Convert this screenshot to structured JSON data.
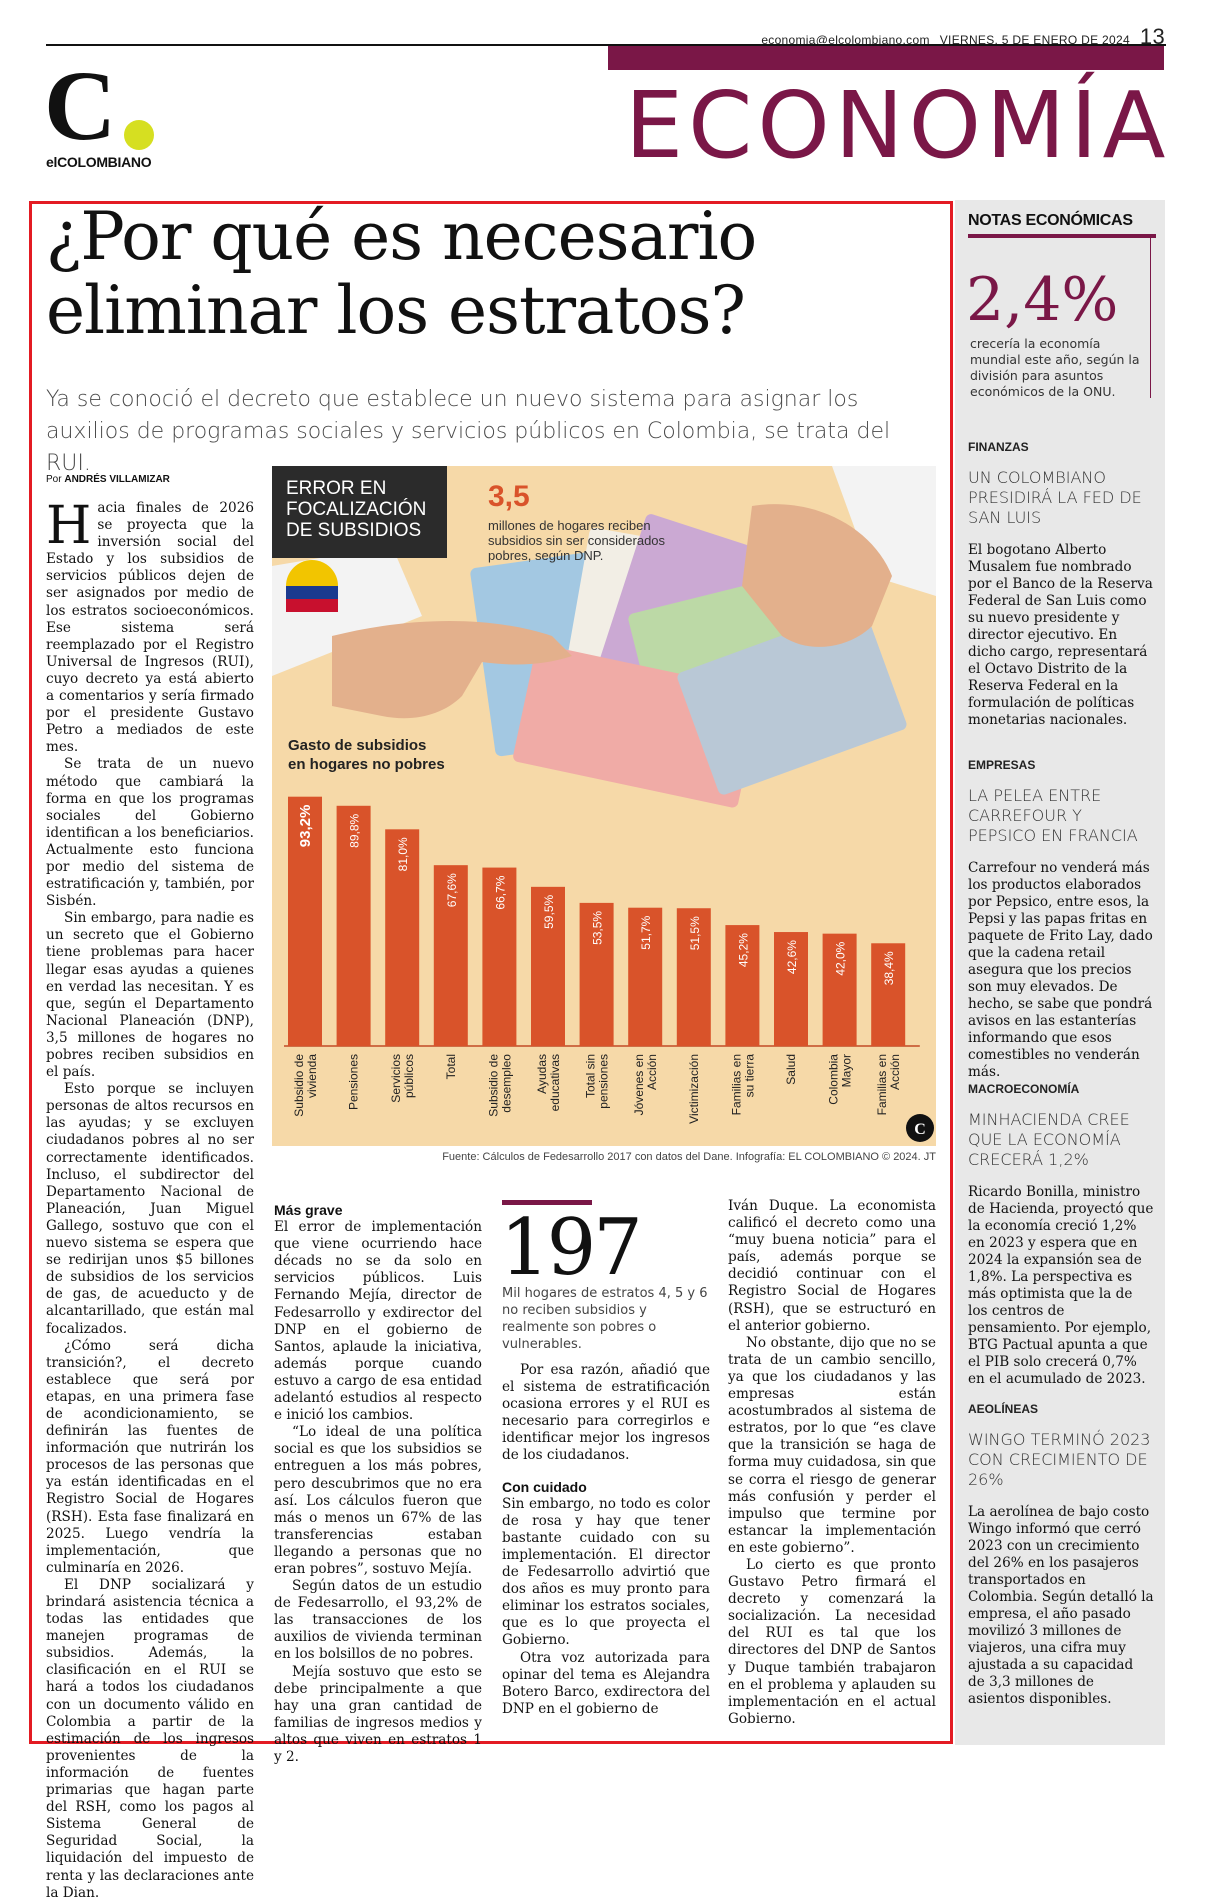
{
  "header": {
    "email": "economia@elcolombiano.com",
    "date": "VIERNES, 5 DE ENERO DE 2024",
    "page_number": "13",
    "logo_letter": "C",
    "logo_name": "elCOLOMBIANO",
    "section": "ECONOMÍA"
  },
  "article": {
    "headline_line1": "¿Por qué es necesario",
    "headline_line2": "eliminar los estratos?",
    "lede": "Ya se conoció el decreto que establece un nuevo sistema para asignar los auxilios de programas sociales y servicios públicos en Colombia, se trata del RUI.",
    "byline_prefix": "Por",
    "byline_author": "ANDRÉS VILLAMIZAR",
    "dropcap": "H",
    "col1": [
      "acia finales de 2026 se proyecta que la inversión social del Estado y los subsidios de servicios públicos dejen de ser asignados por medio de los estratos socioeconómicos. Ese sistema será reemplazado por el Registro Universal de Ingresos (RUI), cuyo decreto ya está abierto a comentarios y sería firmado por el presidente Gustavo Petro a mediados de este mes.",
      "Se trata de un nuevo método que cambiará la forma en que los programas sociales del Gobierno identifican a los beneficiarios. Actualmente esto funciona por medio del sistema de estratificación y, también, por Sisbén.",
      "Sin embargo, para nadie es un secreto que el Gobierno tiene problemas para hacer llegar esas ayudas a quienes en verdad las necesitan. Y es que, según el Departamento Nacional Planeación (DNP), 3,5 millones de hogares no pobres reciben subsidios en el país.",
      "Esto porque se incluyen personas de altos recursos en las ayudas; y se excluyen ciudadanos pobres al no ser correctamente identificados. Incluso, el subdirector del Departamento Nacional de Planeación, Juan Miguel Gallego, sostuvo que con el nuevo sistema se espera que se redirijan unos $5 billones de subsidios de los servicios de gas, de acueducto y de alcantarillado, que están mal focalizados.",
      "¿Cómo será dicha transición?, el decreto establece que será por etapas, en una primera fase de acondicionamiento, se definirán las fuentes de información que nutrirán los procesos de las personas que ya están identificadas en el Registro Social de Hogares (RSH). Esta fase finalizará en 2025. Luego vendría la implementación, que culminaría en 2026.",
      "El DNP socializará y brindará asistencia técnica a todas las entidades que manejen programas de subsidios. Además, la clasificación en el RUI se hará a todos los ciudadanos con un documento válido en Colombia a partir de la estimación de los ingresos provenientes de la información de fuentes primarias que hagan parte del RSH, como los pagos al Sistema General de Seguridad Social, la liquidación del impuesto de renta y las declaraciones ante la Dian."
    ],
    "col2_heading": "Más grave",
    "col2": [
      "El error de implementación que viene ocurriendo hace décads no se da solo en servicios públicos. Luis Fernando Mejía, director de Fedesarrollo y exdirector del DNP en el gobierno de Santos, aplaude la iniciativa, además porque cuando estuvo a cargo de esa entidad adelantó estudios al respecto e inició los cambios.",
      "“Lo ideal de una política social es que los subsidios se entreguen a los más pobres, pero descubrimos que no era así. Los cálculos fueron que más o menos un 67% de las transferencias estaban llegando a personas que no eran pobres”, sostuvo Mejía.",
      "Según datos de un estudio de Fedesarrollo, el 93,2% de las transacciones de los auxilios de vivienda terminan en los bolsillos de no pobres.",
      "Mejía sostuvo que esto se debe principalmente a que hay una gran cantidad de familias de ingresos medios y altos que viven en estratos 1 y 2."
    ],
    "col3_intro": "Por esa razón, añadió que el sistema de estratificación ocasiona errores y el RUI es necesario para corregirlos e identificar mejor los ingresos de los ciudadanos.",
    "col3_heading": "Con cuidado",
    "col3": [
      "Sin embargo, no todo es color de rosa y hay que tener bastante cuidado con su implementación. El director de Fedesarrollo advirtió que dos años es muy pronto para eliminar los estratos sociales, que es lo que proyecta el Gobierno.",
      "Otra voz autorizada para opinar del tema es Alejandra Botero Barco, exdirectora del DNP en el gobierno de"
    ],
    "col4": [
      "Iván Duque. La economista calificó el decreto como una “muy buena noticia” para el país, además porque se decidió continuar con el Registro Social de Hogares (RSH), que se estructuró en el anterior gobierno.",
      "No obstante, dijo que no se trata de un cambio sencillo, ya que los ciudadanos y las empresas están acostumbrados al sistema de estratos, por lo que “es clave que la transición se haga de forma muy cuidadosa, sin que se corra el riesgo de generar más confusión y perder el impulso que termine por estancar la implementación en este gobierno”.",
      "Lo cierto es que pronto Gustavo Petro firmará el decreto y comenzará la socialización. La necesidad del RUI es tal que los directores del DNP de Santos y Duque también trabajaron en el problema y aplauden su implementación en el actual Gobierno."
    ],
    "highlight_number": "197",
    "highlight_text": "Mil hogares de estratos 4, 5 y 6 no reciben subsidios y realmente son pobres o vulnerables."
  },
  "infographic": {
    "label_line1": "ERROR EN",
    "label_line2": "FOCALIZACIÓN",
    "label_line3": "DE SUBSIDIOS",
    "stat_value": "3,5",
    "stat_text": "millones de hogares reciben subsidios sin ser considerados pobres, según DNP.",
    "chart_title_line1": "Gasto de subsidios",
    "chart_title_line2": "en hogares no pobres",
    "source": "Fuente: Cálculos de Fedesarrollo 2017 con datos del Dane. Infografía: EL COLOMBIANO © 2024. JT",
    "logo": "C"
  },
  "chart_data": {
    "type": "bar",
    "title": "Gasto de subsidios en hogares no pobres",
    "categories": [
      "Subsidio de vivienda",
      "Pensiones",
      "Servicios públicos",
      "Total",
      "Subsidio de desempleo",
      "Ayudas educativas",
      "Total sin pensiones",
      "Jóvenes en Acción",
      "Victimización",
      "Familias en su tierra",
      "Salud",
      "Colombia Mayor",
      "Familias en Acción"
    ],
    "values": [
      93.2,
      89.8,
      81.0,
      67.6,
      66.7,
      59.5,
      53.5,
      51.7,
      51.5,
      45.2,
      42.6,
      42.0,
      38.4
    ],
    "labels": [
      "93,2%",
      "89,8%",
      "81,0%",
      "67,6%",
      "66,7%",
      "59,5%",
      "53,5%",
      "51,7%",
      "51,5%",
      "45,2%",
      "42,6%",
      "42,0%",
      "38,4%"
    ],
    "unit": "%",
    "ylim": [
      0,
      100
    ],
    "bar_color": "#d9532a"
  },
  "sidebar": {
    "title": "NOTAS ECONÓMICAS",
    "big_number": "2,4%",
    "big_text": "crecería la economía mundial este año, según la división para asuntos económicos de la ONU.",
    "items": [
      {
        "category": "FINANZAS",
        "headline": "UN COLOMBIANO PRESIDIRÁ LA FED DE SAN LUIS",
        "body": "El bogotano Alberto Musalem fue nombrado por el Banco de la Reserva Federal de San Luis como su nuevo presidente y director ejecutivo. En dicho cargo, representará el Octavo Distrito de la Reserva Federal en la formulación de políticas monetarias nacionales."
      },
      {
        "category": "EMPRESAS",
        "headline": "LA PELEA ENTRE CARREFOUR Y PEPSICO EN FRANCIA",
        "body": "Carrefour no venderá más los productos elaborados por Pepsico, entre esos, la Pepsi y las papas fritas en paquete de Frito Lay, dado que la cadena retail asegura que los precios son muy elevados. De hecho, se sabe que pondrá avisos en las estanterías informando que esos comestibles no venderán más."
      },
      {
        "category": "MACROECONOMÍA",
        "headline": "MINHACIENDA CREE QUE LA ECONOMÍA CRECERÁ 1,2%",
        "body": "Ricardo Bonilla, ministro de Hacienda, proyectó que la economía creció 1,2% en 2023 y espera que en 2024 la expansión sea de 1,8%. La perspectiva es más optimista que la de los centros de pensamiento. Por ejemplo, BTG Pactual apunta a que el PIB solo crecerá 0,7% en el acumulado de 2023."
      },
      {
        "category": "AEOLÍNEAS",
        "headline": "WINGO TERMINÓ 2023 CON CRECIMIENTO DE 26%",
        "body": "La aerolínea de bajo costo Wingo informó que cerró 2023 con un crecimiento del 26% en los pasajeros transportados en Colombia. Según detalló la empresa, el año pasado movilizó 3 millones de viajeros, una cifra muy ajustada a su capacidad de 3,3 millones de asientos disponibles."
      }
    ]
  }
}
